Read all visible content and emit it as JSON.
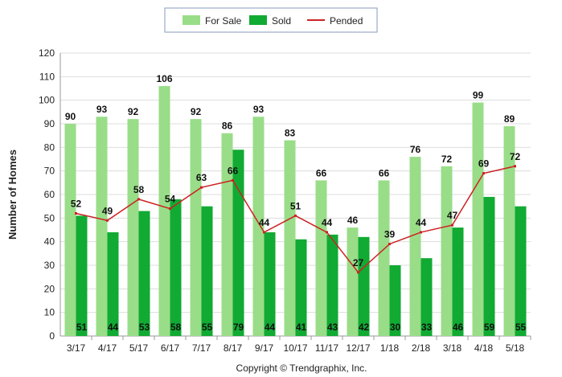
{
  "chart_data": {
    "type": "bar",
    "title": "",
    "xlabel": "",
    "ylabel": "Number of Homes",
    "ylim": [
      0,
      120
    ],
    "yticks": [
      0,
      10,
      20,
      30,
      40,
      50,
      60,
      70,
      80,
      90,
      100,
      110,
      120
    ],
    "grid": true,
    "legend_position": "top-center",
    "categories": [
      "3/17",
      "4/17",
      "5/17",
      "6/17",
      "7/17",
      "8/17",
      "9/17",
      "10/17",
      "11/17",
      "12/17",
      "1/18",
      "2/18",
      "3/18",
      "4/18",
      "5/18"
    ],
    "series": [
      {
        "name": "For Sale",
        "kind": "bar",
        "color": "#99dd88",
        "values": [
          90,
          93,
          92,
          106,
          92,
          86,
          93,
          83,
          66,
          46,
          66,
          76,
          72,
          99,
          89
        ]
      },
      {
        "name": "Sold",
        "kind": "bar",
        "color": "#11aa33",
        "values": [
          51,
          44,
          53,
          58,
          55,
          79,
          44,
          41,
          43,
          42,
          30,
          33,
          46,
          59,
          55
        ]
      },
      {
        "name": "Pended",
        "kind": "line",
        "color": "#cc2222",
        "values": [
          52,
          49,
          58,
          54,
          63,
          66,
          44,
          51,
          44,
          27,
          39,
          44,
          47,
          69,
          72
        ]
      }
    ]
  },
  "footer": {
    "copyright": "Copyright © Trendgraphix, Inc."
  }
}
